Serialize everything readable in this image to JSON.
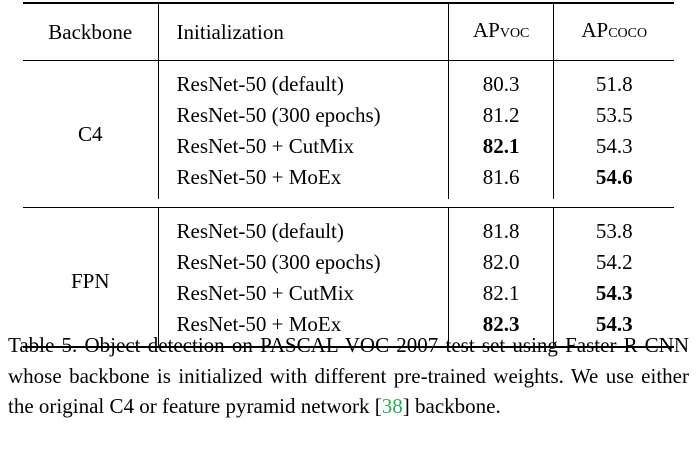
{
  "table": {
    "headers": {
      "backbone": "Backbone",
      "initialization": "Initialization",
      "ap_voc_main": "AP",
      "ap_voc_sub": "VOC",
      "ap_coco_main": "AP",
      "ap_coco_sub": "COCO"
    },
    "groups": [
      {
        "backbone": "C4",
        "rows": [
          {
            "init": "ResNet-50 (default)",
            "ap_voc": "80.3",
            "ap_coco": "51.8",
            "voc_bold": false,
            "coco_bold": false
          },
          {
            "init": "ResNet-50 (300 epochs)",
            "ap_voc": "81.2",
            "ap_coco": "53.5",
            "voc_bold": false,
            "coco_bold": false
          },
          {
            "init": "ResNet-50 + CutMix",
            "ap_voc": "82.1",
            "ap_coco": "54.3",
            "voc_bold": true,
            "coco_bold": false
          },
          {
            "init": "ResNet-50 + MoEx",
            "ap_voc": "81.6",
            "ap_coco": "54.6",
            "voc_bold": false,
            "coco_bold": true
          }
        ]
      },
      {
        "backbone": "FPN",
        "rows": [
          {
            "init": "ResNet-50 (default)",
            "ap_voc": "81.8",
            "ap_coco": "53.8",
            "voc_bold": false,
            "coco_bold": false
          },
          {
            "init": "ResNet-50 (300 epochs)",
            "ap_voc": "82.0",
            "ap_coco": "54.2",
            "voc_bold": false,
            "coco_bold": false
          },
          {
            "init": "ResNet-50 + CutMix",
            "ap_voc": "82.1",
            "ap_coco": "54.3",
            "voc_bold": false,
            "coco_bold": true
          },
          {
            "init": "ResNet-50 + MoEx",
            "ap_voc": "82.3",
            "ap_coco": "54.3",
            "voc_bold": true,
            "coco_bold": true
          }
        ]
      }
    ]
  },
  "caption": {
    "before_cite": "Table 5. Object detection on PASCAL VOC 2007 test set using Faster R-CNN whose backbone is initialized with different pre-trained weights. We use either the original C4 or feature pyramid network [",
    "cite": "38",
    "after_cite": "] backbone.",
    "cite_color": "#22b14c"
  }
}
